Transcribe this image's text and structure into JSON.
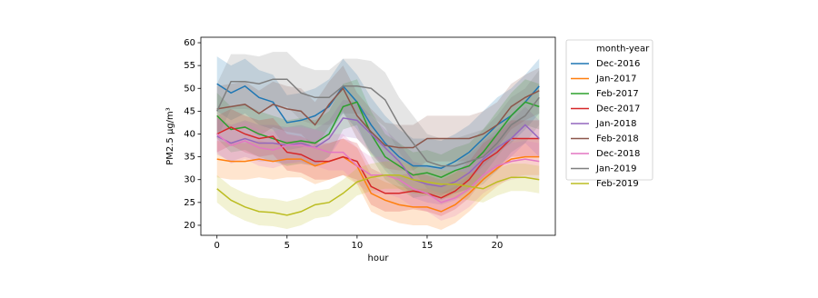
{
  "chart_data": {
    "type": "line",
    "xlabel": "hour",
    "ylabel": "PM2.5 μg/m³",
    "legend_title": "month-year",
    "legend": "outside-right",
    "band_opacity": 0.2,
    "x": [
      0,
      1,
      2,
      3,
      4,
      5,
      6,
      7,
      8,
      9,
      10,
      11,
      12,
      13,
      14,
      15,
      16,
      17,
      18,
      19,
      20,
      21,
      22,
      23
    ],
    "xlim": [
      -1.15,
      24.15
    ],
    "xticks": [
      0,
      5,
      10,
      15,
      20
    ],
    "ylim": [
      17.8,
      61.2
    ],
    "yticks": [
      20,
      25,
      30,
      35,
      40,
      45,
      50,
      55,
      60
    ],
    "series": [
      {
        "name": "Dec-2016",
        "color": "#1f77b4",
        "values": [
          51,
          49,
          50.5,
          48,
          47,
          42.5,
          43,
          44,
          46,
          50.5,
          47,
          42,
          38,
          35,
          33,
          33,
          32.5,
          34,
          36,
          39,
          42,
          44,
          47,
          50.5
        ],
        "lower": [
          45,
          43,
          44.5,
          42,
          41,
          36.5,
          37,
          38,
          40,
          44.5,
          41,
          36,
          32,
          29,
          27,
          27,
          26.5,
          28,
          30,
          33,
          36,
          38,
          41,
          44.5
        ],
        "upper": [
          57,
          55,
          56.5,
          54,
          53,
          48.5,
          49,
          50,
          52,
          56.5,
          53,
          48,
          44,
          41,
          39,
          39,
          38.5,
          40,
          42,
          45,
          48,
          50,
          53,
          56.5
        ]
      },
      {
        "name": "Jan-2017",
        "color": "#ff7f0e",
        "values": [
          34.5,
          34,
          34,
          34.5,
          34,
          34.5,
          34.5,
          33,
          34,
          35,
          33,
          27,
          25.5,
          24.5,
          24,
          24,
          23,
          24.5,
          27,
          30,
          32.5,
          34.5,
          35,
          35
        ],
        "lower": [
          30.5,
          30,
          30,
          30.5,
          30,
          30.5,
          30.5,
          29,
          30,
          31,
          29,
          23,
          21.5,
          20.5,
          20,
          20,
          19,
          20.5,
          23,
          26,
          28.5,
          30.5,
          31,
          31
        ],
        "upper": [
          38.5,
          38,
          38,
          38.5,
          38,
          38.5,
          38.5,
          37,
          38,
          39,
          37,
          31,
          29.5,
          28.5,
          28,
          28,
          27,
          28.5,
          31,
          34,
          36.5,
          38.5,
          39,
          39
        ]
      },
      {
        "name": "Feb-2017",
        "color": "#2ca02c",
        "values": [
          44,
          41,
          41.5,
          40,
          39,
          38,
          38.5,
          38,
          40,
          46,
          47,
          40,
          35,
          33,
          31,
          31.5,
          30.5,
          32,
          33,
          36,
          40,
          44,
          47,
          46
        ],
        "lower": [
          39,
          36,
          36.5,
          35,
          34,
          33,
          33.5,
          33,
          35,
          41,
          42,
          35,
          30,
          28,
          26,
          26.5,
          25.5,
          27,
          28,
          31,
          35,
          39,
          42,
          41
        ],
        "upper": [
          49,
          46,
          46.5,
          45,
          44,
          43,
          43.5,
          43,
          45,
          51,
          52,
          45,
          40,
          38,
          36,
          36.5,
          35.5,
          37,
          38,
          41,
          45,
          49,
          52,
          51
        ]
      },
      {
        "name": "Dec-2017",
        "color": "#d62728",
        "values": [
          40,
          41.5,
          40,
          39,
          39.5,
          36,
          35.5,
          34,
          34,
          35,
          34,
          28.5,
          27,
          27,
          27.5,
          27,
          26,
          27.5,
          30,
          34,
          36,
          39,
          39,
          39
        ],
        "lower": [
          36,
          37.5,
          36,
          35,
          35.5,
          32,
          31.5,
          30,
          30,
          31,
          30,
          24.5,
          23,
          23,
          23.5,
          23,
          22,
          23.5,
          26,
          30,
          32,
          35,
          35,
          35
        ],
        "upper": [
          44,
          45.5,
          44,
          43,
          43.5,
          40,
          39.5,
          38,
          38,
          39,
          38,
          32.5,
          31,
          31,
          31.5,
          31,
          30,
          31.5,
          34,
          38,
          40,
          43,
          43,
          43
        ]
      },
      {
        "name": "Jan-2018",
        "color": "#9467bd",
        "values": [
          39.5,
          38,
          39,
          38,
          38,
          37.5,
          38,
          37,
          39,
          43.5,
          43,
          40,
          37,
          34,
          30,
          29,
          28.5,
          29.5,
          31.5,
          34.5,
          37,
          39,
          42,
          39
        ],
        "lower": [
          35.5,
          34,
          35,
          34,
          34,
          33.5,
          34,
          33,
          35,
          39.5,
          39,
          36,
          33,
          30,
          26,
          25,
          24.5,
          25.5,
          27.5,
          30.5,
          33,
          35,
          38,
          35
        ],
        "upper": [
          43.5,
          42,
          43,
          42,
          42,
          41.5,
          42,
          41,
          43,
          47.5,
          47,
          44,
          41,
          38,
          34,
          33,
          32.5,
          33.5,
          35.5,
          38.5,
          41,
          43,
          46,
          43
        ]
      },
      {
        "name": "Feb-2018",
        "color": "#8c564b",
        "values": [
          45.5,
          46,
          46.5,
          44.5,
          46.5,
          45.5,
          45,
          42,
          46.5,
          50,
          44,
          40.5,
          37.5,
          37,
          37,
          39,
          39,
          39,
          39,
          40,
          42,
          46,
          48,
          49.5
        ],
        "lower": [
          40.5,
          41,
          41.5,
          39.5,
          41.5,
          40.5,
          40,
          37,
          41.5,
          45,
          39,
          35.5,
          32.5,
          32,
          32,
          34,
          34,
          34,
          34,
          35,
          37,
          41,
          43,
          44.5
        ],
        "upper": [
          50.5,
          51,
          51.5,
          49.5,
          51.5,
          50.5,
          50,
          47,
          51.5,
          55,
          49,
          45.5,
          42.5,
          42,
          42,
          44,
          44,
          44,
          44,
          45,
          47,
          51,
          53,
          54.5
        ]
      },
      {
        "name": "Dec-2018",
        "color": "#e377c2",
        "values": [
          40,
          37.5,
          38.5,
          37,
          36.5,
          37.5,
          37.5,
          37,
          36,
          36,
          33,
          31,
          31,
          30,
          28,
          27,
          25,
          26,
          28,
          31,
          33,
          34,
          34.5,
          34
        ],
        "lower": [
          36,
          33.5,
          34.5,
          33,
          32.5,
          33.5,
          33.5,
          33,
          32,
          32,
          29,
          27,
          27,
          26,
          24,
          23,
          21,
          22,
          24,
          27,
          29,
          30,
          30.5,
          30
        ],
        "upper": [
          44,
          41.5,
          42.5,
          41,
          40.5,
          41.5,
          41.5,
          41,
          40,
          40,
          37,
          35,
          35,
          34,
          32,
          31,
          29,
          30,
          32,
          35,
          37,
          38,
          38.5,
          38
        ]
      },
      {
        "name": "Jan-2019",
        "color": "#7f7f7f",
        "values": [
          45,
          51.5,
          51.5,
          51,
          52,
          52,
          49,
          48,
          48,
          50.5,
          50.5,
          50,
          47.5,
          42,
          38,
          34,
          33,
          33,
          34,
          35,
          38,
          42,
          44,
          48
        ],
        "lower": [
          39,
          45.5,
          45.5,
          45,
          46,
          46,
          43,
          42,
          42,
          44.5,
          44.5,
          44,
          41.5,
          36,
          32,
          28,
          27,
          27,
          28,
          29,
          32,
          36,
          38,
          42
        ],
        "upper": [
          51,
          57.5,
          57.5,
          57,
          58,
          58,
          55,
          54,
          54,
          56.5,
          56.5,
          56,
          53.5,
          48,
          44,
          40,
          39,
          39,
          40,
          41,
          44,
          48,
          50,
          54
        ]
      },
      {
        "name": "Feb-2019",
        "color": "#bcbd22",
        "values": [
          28,
          25.5,
          24,
          23,
          22.8,
          22.2,
          23,
          24.5,
          25,
          27,
          29.5,
          30.5,
          31,
          31,
          30,
          29.5,
          29,
          29,
          28.5,
          28,
          29.5,
          30.5,
          30.5,
          30
        ],
        "lower": [
          25,
          22.5,
          21,
          20,
          19.8,
          19.2,
          20,
          21.5,
          22,
          24,
          26.5,
          27.5,
          28,
          28,
          27,
          26.5,
          26,
          26,
          25.5,
          25,
          26.5,
          27.5,
          27.5,
          27
        ],
        "upper": [
          31,
          28.5,
          27,
          26,
          25.8,
          25.2,
          26,
          27.5,
          28,
          30,
          32.5,
          33.5,
          34,
          34,
          33,
          32.5,
          32,
          32,
          31.5,
          31,
          32.5,
          33.5,
          33.5,
          33
        ]
      }
    ]
  }
}
